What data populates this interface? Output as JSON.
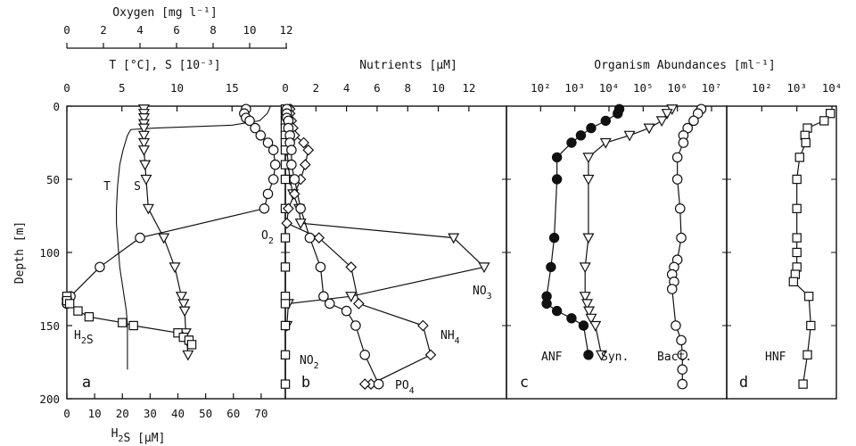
{
  "chart_data": [
    {
      "panel": "a",
      "type": "line",
      "ylabel": "Depth [m]",
      "ylim": [
        0,
        200
      ],
      "yticks": [
        0,
        50,
        100,
        150,
        200
      ],
      "axes": {
        "oxygen": {
          "label": "Oxygen [mg l⁻¹]",
          "lim": [
            0,
            12
          ],
          "ticks": [
            0,
            2,
            4,
            6,
            8,
            10,
            12
          ]
        },
        "ts": {
          "label": "T [°C], S [10⁻³]",
          "lim": [
            0,
            20
          ],
          "ticks": [
            0,
            5,
            10,
            15
          ]
        },
        "h2s": {
          "label": "H₂S [μM]",
          "lim": [
            0,
            80
          ],
          "ticks": [
            0,
            10,
            20,
            30,
            40,
            50,
            60,
            70
          ]
        }
      },
      "series": [
        {
          "name": "T",
          "axis": "ts",
          "marker": "none",
          "x": [
            18.5,
            18.2,
            17.5,
            15,
            8,
            5.8,
            5.5,
            5.1,
            4.8,
            4.6,
            4.5,
            4.5,
            4.6,
            4.7,
            4.8,
            5.0,
            5.2,
            5.4,
            5.5,
            5.5,
            5.5,
            5.5
          ],
          "y": [
            0,
            5,
            10,
            13,
            15,
            16,
            20,
            30,
            40,
            55,
            70,
            80,
            90,
            100,
            110,
            120,
            130,
            140,
            150,
            160,
            170,
            180
          ]
        },
        {
          "name": "S",
          "axis": "ts",
          "marker": "triangle",
          "x": [
            7.0,
            7.0,
            7.0,
            7.0,
            7.0,
            7.0,
            7.0,
            7.0,
            7.1,
            7.2,
            7.4,
            8.8,
            9.8,
            10.4,
            10.6,
            10.7,
            10.8,
            10.9,
            11.0
          ],
          "y": [
            2,
            5,
            8,
            12,
            15,
            20,
            25,
            30,
            40,
            50,
            70,
            90,
            110,
            130,
            135,
            140,
            155,
            160,
            170
          ]
        },
        {
          "name": "O₂",
          "axis": "oxygen",
          "marker": "circle",
          "x": [
            9.8,
            9.7,
            9.8,
            10.0,
            10.3,
            10.6,
            11.0,
            11.3,
            11.4,
            11.3,
            11.0,
            10.8,
            4.0,
            1.8,
            0.2,
            0.0,
            0.0
          ],
          "y": [
            2,
            5,
            8,
            10,
            15,
            20,
            25,
            30,
            40,
            50,
            60,
            70,
            90,
            110,
            130,
            132,
            135
          ]
        },
        {
          "name": "H₂S",
          "axis": "h2s",
          "marker": "square",
          "x": [
            0,
            0,
            1,
            4,
            8,
            20,
            24,
            40,
            42,
            44,
            45
          ],
          "y": [
            130,
            133,
            135,
            140,
            144,
            148,
            150,
            155,
            158,
            160,
            163
          ]
        }
      ],
      "annotations": [
        "T",
        "S",
        "O₂",
        "H₂S",
        "a"
      ]
    },
    {
      "panel": "b",
      "type": "line",
      "xlabel": "Nutrients [μM]",
      "xlim": [
        0,
        13
      ],
      "xticks": [
        0,
        2,
        4,
        6,
        8,
        10,
        12
      ],
      "ylim": [
        0,
        200
      ],
      "series": [
        {
          "name": "NO₃",
          "marker": "triangle",
          "x": [
            0.1,
            0.1,
            0.1,
            0.1,
            0.1,
            0.1,
            0.1,
            0.2,
            0.3,
            0.5,
            0.9,
            1.0,
            11.0,
            13.0,
            4.3,
            0.2,
            0.1
          ],
          "y": [
            2,
            5,
            10,
            15,
            20,
            25,
            30,
            40,
            50,
            60,
            70,
            80,
            90,
            110,
            130,
            135,
            150
          ]
        },
        {
          "name": "NO₂",
          "marker": "square",
          "x": [
            0.0,
            0.0,
            0.0,
            0.0,
            0.0,
            0.0,
            0.0,
            0.0,
            0.0,
            0.0,
            0.0,
            0.0,
            0.0,
            0.0,
            0.0,
            0.0,
            0.0
          ],
          "y": [
            2,
            5,
            10,
            15,
            20,
            25,
            30,
            40,
            50,
            70,
            90,
            110,
            130,
            135,
            150,
            170,
            190
          ]
        },
        {
          "name": "NH₄",
          "marker": "diamond",
          "x": [
            0.3,
            0.3,
            0.4,
            0.5,
            0.6,
            1.2,
            1.5,
            1.3,
            1.0,
            0.6,
            0.2,
            0.1,
            2.2,
            4.3,
            4.8,
            9.0,
            9.5,
            5.6,
            5.2
          ],
          "y": [
            2,
            5,
            10,
            15,
            20,
            25,
            30,
            40,
            50,
            60,
            70,
            80,
            90,
            110,
            135,
            150,
            170,
            190,
            190
          ]
        },
        {
          "name": "PO₄",
          "marker": "circle",
          "x": [
            0.1,
            0.1,
            0.1,
            0.2,
            0.2,
            0.3,
            0.3,
            0.4,
            0.4,
            0.6,
            1.0,
            1.6,
            2.3,
            2.5,
            2.9,
            4.0,
            4.6,
            5.2,
            6.1
          ],
          "y": [
            2,
            5,
            8,
            10,
            15,
            20,
            25,
            30,
            40,
            50,
            70,
            90,
            110,
            130,
            135,
            140,
            150,
            170,
            190
          ]
        }
      ],
      "annotations": [
        "NO₃",
        "NO₂",
        "NH₄",
        "PO₄",
        "b"
      ]
    },
    {
      "panel": "c",
      "type": "line",
      "xscale": "log",
      "xlabel": "Organism Abundances [ml⁻¹]",
      "xlim": [
        100,
        10000000
      ],
      "xticks": [
        "10²",
        "10³",
        "10⁴",
        "10⁵",
        "10⁶",
        "10⁷"
      ],
      "ylim": [
        0,
        200
      ],
      "series": [
        {
          "name": "ANF",
          "marker": "filled-circle",
          "x": [
            20000,
            18000,
            8000,
            3000,
            1500,
            800,
            300,
            300,
            250,
            200,
            150,
            150,
            300,
            800,
            1800,
            2500
          ],
          "y": [
            2,
            5,
            10,
            15,
            20,
            25,
            35,
            50,
            90,
            110,
            130,
            135,
            140,
            145,
            150,
            170
          ]
        },
        {
          "name": "Syn.",
          "marker": "triangle",
          "x": [
            700000,
            500000,
            350000,
            150000,
            40000,
            8000,
            2500,
            2500,
            2500,
            2000,
            2000,
            2300,
            2600,
            3000,
            4000,
            6000
          ],
          "y": [
            2,
            5,
            10,
            15,
            20,
            25,
            35,
            50,
            90,
            110,
            130,
            135,
            140,
            145,
            150,
            170
          ]
        },
        {
          "name": "Bact.",
          "marker": "circle",
          "x": [
            5000000,
            4000000,
            3000000,
            2000000,
            1500000,
            1500000,
            1000000,
            1000000,
            1200000,
            1300000,
            1000000,
            800000,
            700000,
            800000,
            700000,
            900000,
            1300000,
            1400000,
            1400000,
            1400000
          ],
          "y": [
            2,
            5,
            10,
            15,
            20,
            25,
            35,
            50,
            70,
            90,
            105,
            110,
            115,
            120,
            125,
            150,
            160,
            170,
            180,
            190
          ]
        }
      ],
      "annotations": [
        "ANF",
        "Syn.",
        "Bact.",
        "c"
      ]
    },
    {
      "panel": "d",
      "type": "line",
      "xscale": "log",
      "xlim": [
        10,
        10000
      ],
      "xticks": [
        "10²",
        "10³",
        "10⁴"
      ],
      "ylim": [
        0,
        200
      ],
      "series": [
        {
          "name": "HNF",
          "marker": "square",
          "x": [
            9000,
            6000,
            2000,
            1700,
            1800,
            1200,
            1000,
            1000,
            1000,
            1000,
            1000,
            900,
            800,
            2200,
            2500,
            2000,
            1500
          ],
          "y": [
            5,
            10,
            15,
            20,
            25,
            35,
            50,
            70,
            90,
            100,
            110,
            115,
            120,
            130,
            150,
            170,
            190
          ]
        }
      ],
      "annotations": [
        "HNF",
        "d"
      ]
    }
  ]
}
